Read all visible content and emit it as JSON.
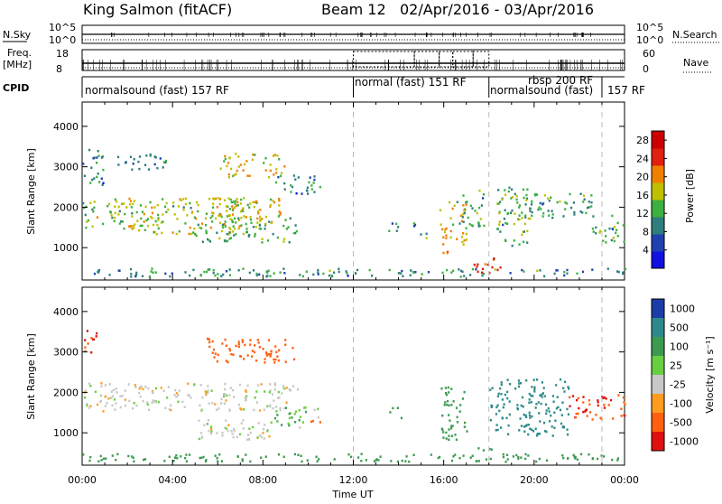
{
  "header": {
    "station": "King Salmon (fitACF)",
    "beam": "Beam 12",
    "date_range": "02/Apr/2016 - 03/Apr/2016"
  },
  "strip": {
    "nsky_label": "N.Sky",
    "nsearch_label": "N.Search",
    "freq_label_1": "Freq.",
    "freq_label_2": "[MHz]",
    "nave_label": "Nave",
    "cpid_label": "CPID",
    "nsky_ticks": [
      "10^5",
      "10^0"
    ],
    "nsearch_ticks": [
      "10^5",
      "10^0"
    ],
    "freq_ticks": [
      "18",
      "8"
    ],
    "nave_ticks": [
      "60",
      "0"
    ],
    "cpid_segments": [
      {
        "label": "normalsound (fast) 157 RF",
        "start": 0.0
      },
      {
        "label": "normal (fast) 151 RF",
        "start": 12.0
      },
      {
        "label": "rbsp 200 RF",
        "start": 18.0
      },
      {
        "label": "normalsound (fast)",
        "start": 18.0
      },
      {
        "label": "157 RF",
        "start": 23.0
      }
    ]
  },
  "chart_data": [
    {
      "type": "heatmap",
      "title": "",
      "ylabel": "Slant Range [km]",
      "xlabel": "",
      "xlim": [
        0,
        24
      ],
      "ylim": [
        200,
        4600
      ],
      "yticks": [
        1000,
        2000,
        3000,
        4000
      ],
      "colorbar": {
        "label": "Power [dB]",
        "ticks": [
          4,
          8,
          12,
          16,
          20,
          24,
          28
        ],
        "range": [
          0,
          30
        ],
        "colors": [
          "#1010e0",
          "#2040b0",
          "#2e7e7e",
          "#3cb040",
          "#c0c000",
          "#f08000",
          "#e02010",
          "#cc0000"
        ]
      },
      "scatter_regions": [
        {
          "t0": 0.0,
          "t1": 0.9,
          "r0": 2500,
          "r1": 3400,
          "v": 10
        },
        {
          "t0": 0.0,
          "t1": 2.0,
          "r0": 1400,
          "r1": 2200,
          "v": 14
        },
        {
          "t0": 2.0,
          "t1": 7.5,
          "r0": 1300,
          "r1": 2200,
          "v": 16
        },
        {
          "t0": 5.5,
          "t1": 8.8,
          "r0": 1600,
          "r1": 2200,
          "v": 18
        },
        {
          "t0": 1.5,
          "t1": 3.8,
          "r0": 2900,
          "r1": 3300,
          "v": 9
        },
        {
          "t0": 6.0,
          "t1": 9.0,
          "r0": 2700,
          "r1": 3300,
          "v": 18
        },
        {
          "t0": 5.0,
          "t1": 9.5,
          "r0": 1100,
          "r1": 1700,
          "v": 13
        },
        {
          "t0": 8.5,
          "t1": 10.6,
          "r0": 2300,
          "r1": 2800,
          "v": 10
        },
        {
          "t0": 13.5,
          "t1": 14.2,
          "r0": 1300,
          "r1": 1600,
          "v": 10
        },
        {
          "t0": 14.5,
          "t1": 15.2,
          "r0": 1200,
          "r1": 1600,
          "v": 10
        },
        {
          "t0": 15.8,
          "t1": 17.0,
          "r0": 800,
          "r1": 2100,
          "v": 18
        },
        {
          "t0": 16.5,
          "t1": 17.8,
          "r0": 1500,
          "r1": 2400,
          "v": 12
        },
        {
          "t0": 17.2,
          "t1": 18.5,
          "r0": 350,
          "r1": 700,
          "v": 24
        },
        {
          "t0": 18.3,
          "t1": 19.8,
          "r0": 1000,
          "r1": 2500,
          "v": 12
        },
        {
          "t0": 19.5,
          "t1": 22.5,
          "r0": 1700,
          "r1": 2300,
          "v": 12
        },
        {
          "t0": 22.5,
          "t1": 24.0,
          "r0": 1100,
          "r1": 1800,
          "v": 12
        },
        {
          "t0": 0.0,
          "t1": 24.0,
          "r0": 250,
          "r1": 450,
          "v": 10
        }
      ]
    },
    {
      "type": "heatmap",
      "title": "",
      "ylabel": "Slant Range [km]",
      "xlabel": "Time UT",
      "xlim": [
        0,
        24
      ],
      "ylim": [
        200,
        4600
      ],
      "yticks": [
        1000,
        2000,
        3000,
        4000
      ],
      "xticks": [
        "00:00",
        "04:00",
        "08:00",
        "12:00",
        "16:00",
        "20:00",
        "00:00"
      ],
      "colorbar": {
        "label": "Velocity [m s⁻¹]",
        "ticks": [
          "1000",
          "500",
          "100",
          "25",
          "-25",
          "-100",
          "-500",
          "-1000"
        ],
        "colors": [
          "#1c3ca8",
          "#2e8a8a",
          "#3c9a50",
          "#68d040",
          "#c8c8c8",
          "#ff9c20",
          "#ff6010",
          "#e01010"
        ]
      },
      "scatter_regions": [
        {
          "t0": 0.0,
          "t1": 0.7,
          "r0": 2900,
          "r1": 3500,
          "v": -500
        },
        {
          "t0": 0.0,
          "t1": 9.5,
          "r0": 1500,
          "r1": 2200,
          "v": 0
        },
        {
          "t0": 5.5,
          "t1": 9.5,
          "r0": 2700,
          "r1": 3300,
          "v": -200
        },
        {
          "t0": 5.0,
          "t1": 8.5,
          "r0": 800,
          "r1": 1300,
          "v": 0
        },
        {
          "t0": 8.5,
          "t1": 10.5,
          "r0": 1100,
          "r1": 1600,
          "v": 50
        },
        {
          "t0": 10.0,
          "t1": 10.5,
          "r0": 1200,
          "r1": 1500,
          "v": -300
        },
        {
          "t0": 13.5,
          "t1": 14.2,
          "r0": 1300,
          "r1": 1600,
          "v": 200
        },
        {
          "t0": 15.8,
          "t1": 17.0,
          "r0": 800,
          "r1": 2100,
          "v": 200
        },
        {
          "t0": 17.0,
          "t1": 18.2,
          "r0": 350,
          "r1": 600,
          "v": 60
        },
        {
          "t0": 18.0,
          "t1": 21.5,
          "r0": 900,
          "r1": 2300,
          "v": 400
        },
        {
          "t0": 21.5,
          "t1": 24.0,
          "r0": 1300,
          "r1": 1900,
          "v": -500
        },
        {
          "t0": 0.0,
          "t1": 24.0,
          "r0": 250,
          "r1": 450,
          "v": 100
        }
      ]
    }
  ]
}
